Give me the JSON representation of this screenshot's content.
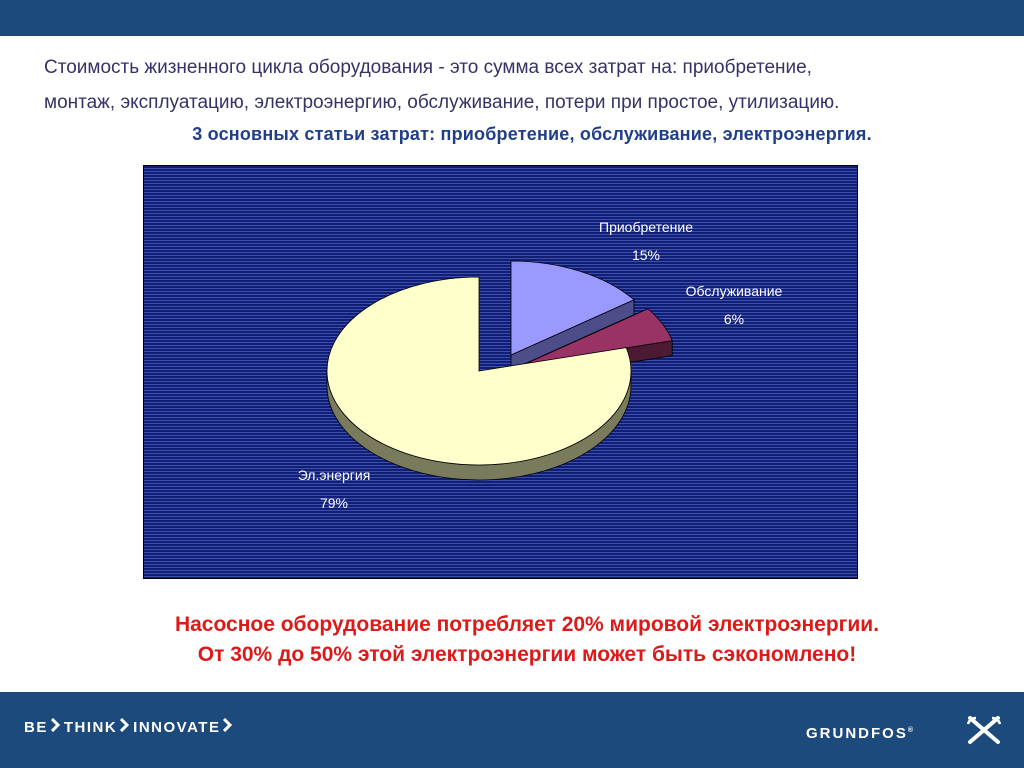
{
  "intro": {
    "line1": "Стоимость жизненного цикла оборудования - это сумма всех затрат на: приобретение,",
    "line2": "монтаж, эксплуатацию, электроэнергию, обслуживание, потери при простое, утилизацию."
  },
  "subhead": "3 основных статьи затрат: приобретение, обслуживание, электроэнергия.",
  "chart_data": {
    "type": "pie",
    "style": "3d-exploded",
    "slices": [
      {
        "label": "Приобретение",
        "value": 15,
        "value_label": "15%",
        "color": "#9999ff",
        "side_color": "#4d4d8a"
      },
      {
        "label": "Обслуживание",
        "value": 6,
        "value_label": "6%",
        "color": "#993366",
        "side_color": "#4d1a33"
      },
      {
        "label": "Эл.энергия",
        "value": 79,
        "value_label": "79%",
        "color": "#ffffcc",
        "side_color": "#7a7a5c"
      }
    ],
    "legend": "none",
    "grid": false,
    "background_color": "#1d2a88"
  },
  "emphasis": {
    "line1": "Насосное оборудование потребляет 20% мировой электроэнергии.",
    "line2": "От 30% до 50% этой электроэнергии может быть сэкономлено!"
  },
  "footer": {
    "slogan_words": [
      "BE",
      "THINK",
      "INNOVATE"
    ],
    "brand": "GRUNDFOS",
    "brand_mark": "®",
    "logo_icon": "grundfos-x-logo-icon"
  },
  "colors": {
    "bar": "#1d4a7c",
    "intro_text": "#333366",
    "subhead_text": "#1f3f8a",
    "emphasis_text": "#dd1a1a"
  }
}
